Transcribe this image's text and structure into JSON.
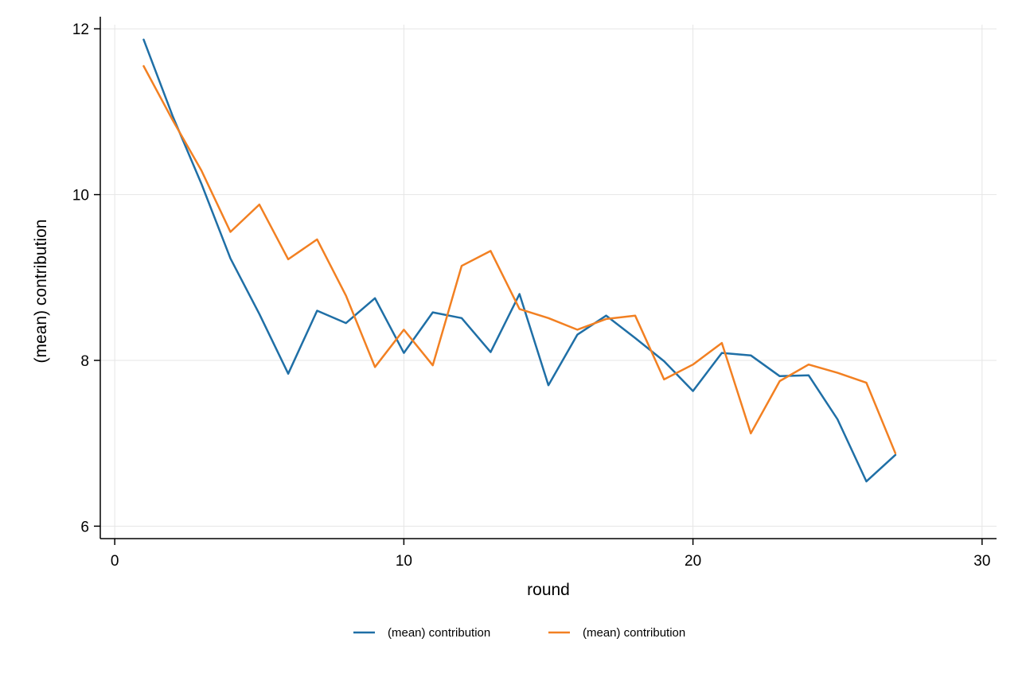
{
  "chart_data": {
    "type": "line",
    "title": "",
    "xlabel": "round",
    "ylabel": "(mean) contribution",
    "xlim": [
      -0.5,
      30.5
    ],
    "ylim": [
      5.85,
      12.05
    ],
    "xticks": [
      0,
      10,
      20,
      30
    ],
    "yticks": [
      6,
      8,
      10,
      12
    ],
    "xtick_labels": [
      "0",
      "10",
      "20",
      "30"
    ],
    "ytick_labels": [
      "6",
      "8",
      "10",
      "12"
    ],
    "grid": true,
    "legend_position": "bottom",
    "x": [
      1,
      2,
      3,
      4,
      5,
      6,
      7,
      8,
      9,
      10,
      11,
      12,
      13,
      14,
      15,
      16,
      17,
      18,
      19,
      20,
      21,
      22,
      23,
      24,
      25,
      26,
      27
    ],
    "series": [
      {
        "name": "(mean) contribution",
        "color": "#1f6fa6",
        "values": [
          11.87,
          10.95,
          10.13,
          9.23,
          8.56,
          7.84,
          8.6,
          8.45,
          8.75,
          8.09,
          8.58,
          8.51,
          8.1,
          8.8,
          7.7,
          8.31,
          8.54,
          8.27,
          7.99,
          7.63,
          8.09,
          8.06,
          7.81,
          7.82,
          7.29,
          6.54,
          6.86
        ]
      },
      {
        "name": "(mean) contribution",
        "color": "#f28022",
        "values": [
          11.55,
          10.9,
          10.29,
          9.55,
          9.88,
          9.22,
          9.46,
          8.78,
          7.92,
          8.37,
          7.94,
          9.14,
          9.32,
          8.62,
          8.51,
          8.37,
          8.5,
          8.54,
          7.77,
          7.95,
          8.21,
          7.12,
          7.75,
          7.95,
          7.85,
          7.73,
          6.88
        ]
      }
    ]
  }
}
